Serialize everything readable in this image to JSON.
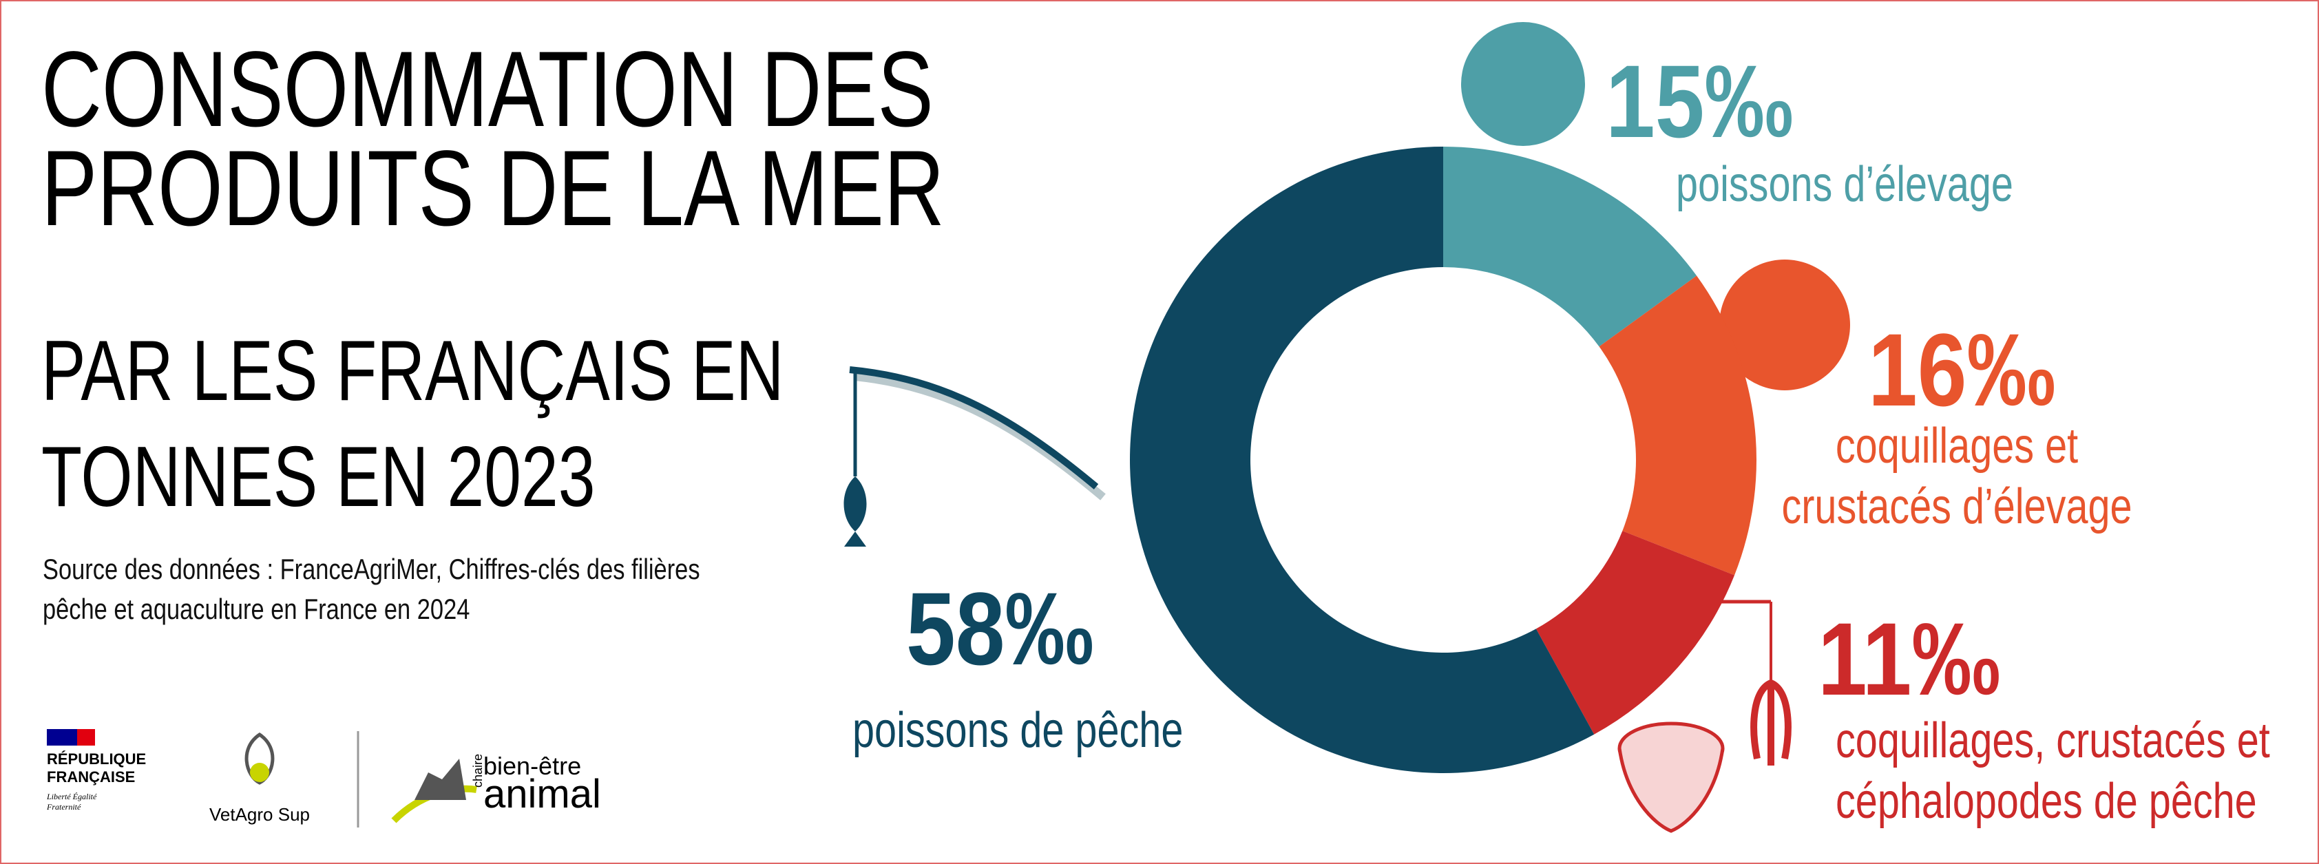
{
  "chart_data": {
    "type": "pie",
    "title": "CONSOMMATION DES PRODUITS DE LA MER",
    "subtitle": "PAR LES FRANÇAIS EN TONNES EN 2023",
    "source": "Source des données : FranceAgriMer, Chiffres-clés des filières pêche et aquaculture en France en 2024",
    "categories": [
      "poissons d’élevage",
      "coquillages et crustacés d’élevage",
      "coquillages, crustacés et céphalopodes de pêche",
      "poissons de pêche"
    ],
    "values": [
      15,
      16,
      11,
      58
    ],
    "value_labels": [
      "15‰",
      "16‰",
      "11‰",
      "58‰"
    ],
    "colors": [
      "#4e9fa7",
      "#e8552d",
      "#cc2a2a",
      "#0e4760"
    ]
  },
  "logos": {
    "republique": "RÉPUBLIQUE FRANÇAISE",
    "devise": "Liberté Égalité Fraternité",
    "vetagro": "VetAgro Sup",
    "chaire": "chaire",
    "bien_etre": "bien-être",
    "animal": "animal"
  }
}
